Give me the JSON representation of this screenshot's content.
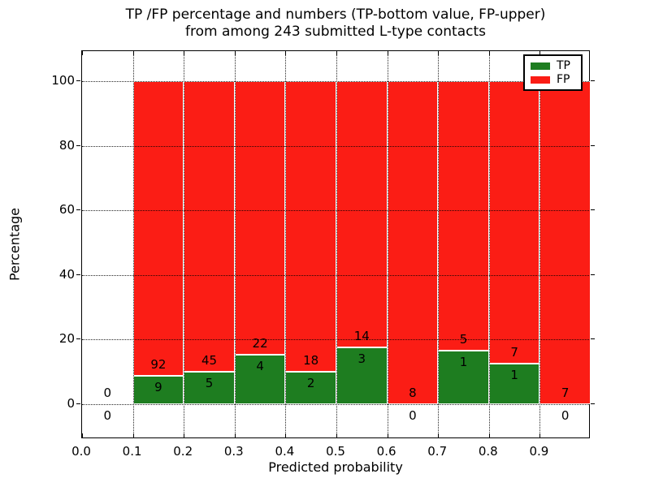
{
  "title": {
    "line1": "TP /FP percentage and numbers (TP-bottom value, FP-upper)",
    "line2": "from among 243 submitted L-type contacts"
  },
  "axes": {
    "ylabel": "Percentage",
    "xlabel": "Predicted probability",
    "yticks": [
      0,
      20,
      40,
      60,
      80,
      100
    ],
    "xticks": [
      "0.0",
      "0.1",
      "0.2",
      "0.3",
      "0.4",
      "0.5",
      "0.6",
      "0.7",
      "0.8",
      "0.9"
    ]
  },
  "legend": {
    "items": [
      {
        "label": "TP",
        "color": "#1e7d20"
      },
      {
        "label": "FP",
        "color": "#fb1d15"
      }
    ]
  },
  "colors": {
    "tp_green": "#1e7d20",
    "fp_red": "#fb1d15",
    "bar_edge": "#ffffff",
    "grid": "#000000",
    "text": "#000000",
    "background": "#ffffff"
  },
  "chart_data": {
    "type": "bar",
    "stacked": true,
    "normalized_to": 100,
    "title": "TP /FP percentage and numbers (TP-bottom value, FP-upper) from among 243 submitted L-type contacts",
    "xlabel": "Predicted probability",
    "ylabel": "Percentage",
    "xlim": [
      0.0,
      1.0
    ],
    "ylim": [
      -10.8,
      109.3
    ],
    "grid": "dotted, both axes, drawn over bars",
    "legend_position": "upper right",
    "bin_width": 0.1,
    "bins": [
      {
        "range": [
          0.0,
          0.1
        ],
        "tp": 0,
        "fp": 0,
        "tp_pct": 0,
        "fp_pct": 0,
        "bars_drawn": false
      },
      {
        "range": [
          0.1,
          0.2
        ],
        "tp": 9,
        "fp": 92,
        "tp_pct": 8.91,
        "fp_pct": 91.09,
        "bars_drawn": true
      },
      {
        "range": [
          0.2,
          0.3
        ],
        "tp": 5,
        "fp": 45,
        "tp_pct": 10.0,
        "fp_pct": 90.0,
        "bars_drawn": true
      },
      {
        "range": [
          0.3,
          0.4
        ],
        "tp": 4,
        "fp": 22,
        "tp_pct": 15.38,
        "fp_pct": 84.62,
        "bars_drawn": true
      },
      {
        "range": [
          0.4,
          0.5
        ],
        "tp": 2,
        "fp": 18,
        "tp_pct": 10.0,
        "fp_pct": 90.0,
        "bars_drawn": true
      },
      {
        "range": [
          0.5,
          0.6
        ],
        "tp": 3,
        "fp": 14,
        "tp_pct": 17.65,
        "fp_pct": 82.35,
        "bars_drawn": true
      },
      {
        "range": [
          0.6,
          0.7
        ],
        "tp": 0,
        "fp": 8,
        "tp_pct": 0,
        "fp_pct": 100.0,
        "bars_drawn": true
      },
      {
        "range": [
          0.7,
          0.8
        ],
        "tp": 1,
        "fp": 5,
        "tp_pct": 16.67,
        "fp_pct": 83.33,
        "bars_drawn": true
      },
      {
        "range": [
          0.8,
          0.9
        ],
        "tp": 1,
        "fp": 7,
        "tp_pct": 12.5,
        "fp_pct": 87.5,
        "bars_drawn": true
      },
      {
        "range": [
          0.9,
          1.0
        ],
        "tp": 0,
        "fp": 7,
        "tp_pct": 0,
        "fp_pct": 100.0,
        "bars_drawn": true
      }
    ]
  }
}
